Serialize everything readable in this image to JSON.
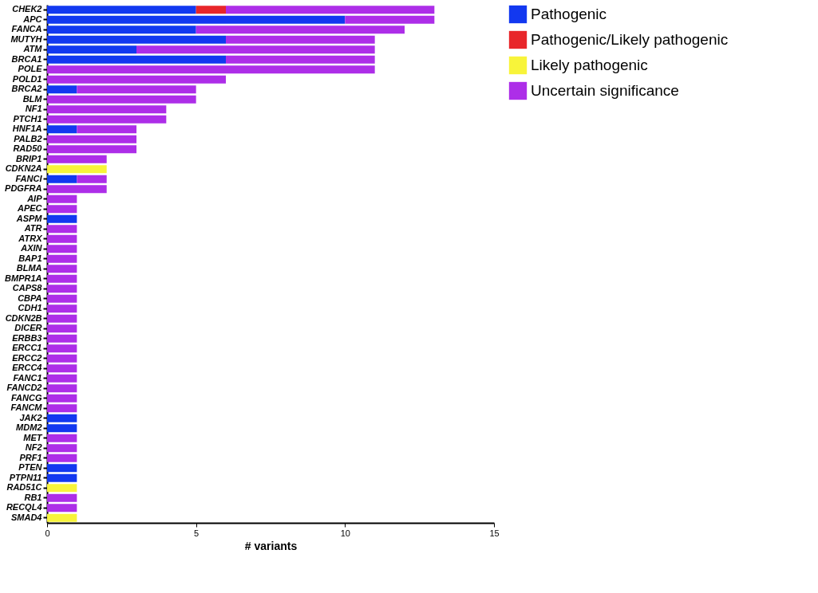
{
  "chart_data": {
    "type": "bar",
    "orientation": "horizontal",
    "stacked": true,
    "xlabel": "# variants",
    "xlim": [
      0,
      15
    ],
    "xticks": [
      0,
      5,
      10,
      15
    ],
    "grid": false,
    "legend": "top right",
    "categories": [
      "CHEK2",
      "APC",
      "FANCA",
      "MUTYH",
      "ATM",
      "BRCA1",
      "POLE",
      "POLD1",
      "BRCA2",
      "BLM",
      "NF1",
      "PTCH1",
      "HNF1A",
      "PALB2",
      "RAD50",
      "BRIP1",
      "CDKN2A",
      "FANCI",
      "PDGFRA",
      "AIP",
      "APEC",
      "ASPM",
      "ATR",
      "ATRX",
      "AXIN",
      "BAP1",
      "BLMA",
      "BMPR1A",
      "CAPS8",
      "CBPA",
      "CDH1",
      "CDKN2B",
      "DICER",
      "ERBB3",
      "ERCC1",
      "ERCC2",
      "ERCC4",
      "FANC1",
      "FANCD2",
      "FANCG",
      "FANCM",
      "JAK2",
      "MDM2",
      "MET",
      "NF2",
      "PRF1",
      "PTEN",
      "PTPN11",
      "RAD51C",
      "RB1",
      "RECQL4",
      "SMAD4"
    ],
    "series": [
      {
        "name": "Pathogenic",
        "color": "#1238f0",
        "values": [
          5,
          10,
          5,
          6,
          3,
          6,
          null,
          null,
          1,
          null,
          null,
          null,
          1,
          null,
          null,
          null,
          null,
          1,
          null,
          null,
          null,
          1,
          null,
          null,
          null,
          null,
          null,
          null,
          null,
          null,
          null,
          null,
          null,
          null,
          null,
          null,
          null,
          null,
          null,
          null,
          null,
          1,
          1,
          null,
          null,
          null,
          1,
          1,
          null,
          null,
          null,
          null
        ]
      },
      {
        "name": "Pathogenic/Likely pathogenic",
        "color": "#e8262a",
        "values": [
          1,
          null,
          null,
          null,
          null,
          null,
          null,
          null,
          null,
          null,
          null,
          null,
          null,
          null,
          null,
          null,
          null,
          null,
          null,
          null,
          null,
          null,
          null,
          null,
          null,
          null,
          null,
          null,
          null,
          null,
          null,
          null,
          null,
          null,
          null,
          null,
          null,
          null,
          null,
          null,
          null,
          null,
          null,
          null,
          null,
          null,
          null,
          null,
          null,
          null,
          null,
          null
        ]
      },
      {
        "name": "Likely pathogenic",
        "color": "#f8f43a",
        "values": [
          null,
          null,
          null,
          null,
          null,
          null,
          null,
          null,
          null,
          null,
          null,
          null,
          null,
          null,
          null,
          null,
          2,
          null,
          null,
          null,
          null,
          null,
          null,
          null,
          null,
          null,
          null,
          null,
          null,
          null,
          null,
          null,
          null,
          null,
          null,
          null,
          null,
          null,
          null,
          null,
          null,
          null,
          null,
          null,
          null,
          null,
          null,
          null,
          1,
          null,
          null,
          1
        ]
      },
      {
        "name": "Uncertain significance",
        "color": "#ad2ee8",
        "values": [
          7,
          3,
          7,
          5,
          8,
          5,
          11,
          6,
          4,
          5,
          4,
          4,
          2,
          3,
          3,
          2,
          null,
          1,
          2,
          1,
          1,
          null,
          1,
          1,
          1,
          1,
          1,
          1,
          1,
          1,
          1,
          1,
          1,
          1,
          1,
          1,
          1,
          1,
          1,
          1,
          1,
          null,
          null,
          1,
          1,
          1,
          null,
          null,
          null,
          1,
          1,
          null
        ]
      }
    ]
  }
}
